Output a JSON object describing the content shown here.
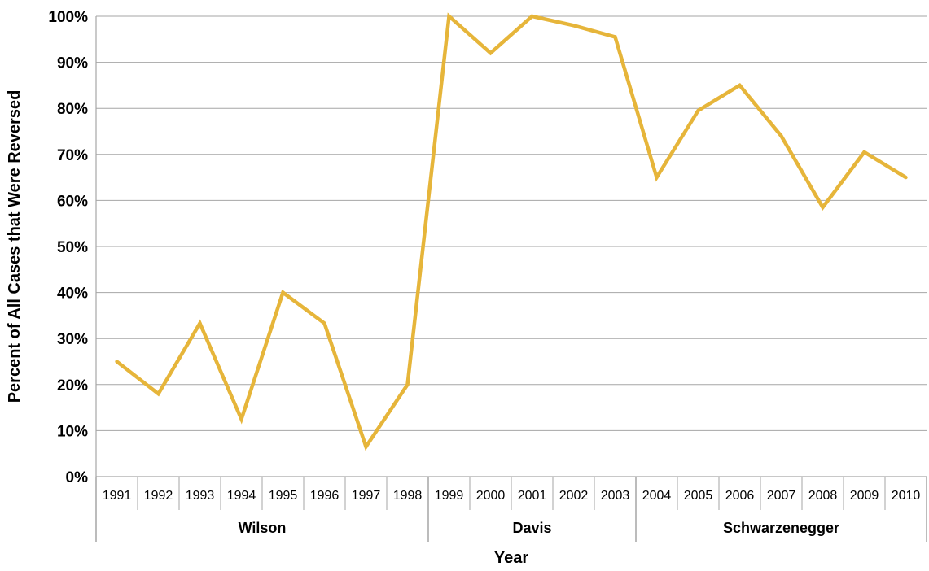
{
  "chart_data": {
    "type": "line",
    "title": "",
    "xlabel": "Year",
    "ylabel": "Percent of All Cases that Were Reversed",
    "ylim": [
      0,
      100
    ],
    "y_tick_step": 10,
    "y_tick_suffix": "%",
    "grid": true,
    "legend": "none",
    "line_color": "#e6b53a",
    "categories": [
      "1991",
      "1992",
      "1993",
      "1994",
      "1995",
      "1996",
      "1997",
      "1998",
      "1999",
      "2000",
      "2001",
      "2002",
      "2003",
      "2004",
      "2005",
      "2006",
      "2007",
      "2008",
      "2009",
      "2010"
    ],
    "series": [
      {
        "values": [
          25,
          18,
          33.3,
          12.5,
          40,
          33.3,
          6.5,
          20,
          100,
          92,
          100,
          98,
          95.5,
          65,
          79.5,
          85,
          74,
          58.5,
          70.5,
          65
        ]
      }
    ],
    "groups": [
      {
        "label": "Wilson",
        "start": 0,
        "end": 7
      },
      {
        "label": "Davis",
        "start": 8,
        "end": 12
      },
      {
        "label": "Schwarzenegger",
        "start": 13,
        "end": 19
      }
    ]
  }
}
